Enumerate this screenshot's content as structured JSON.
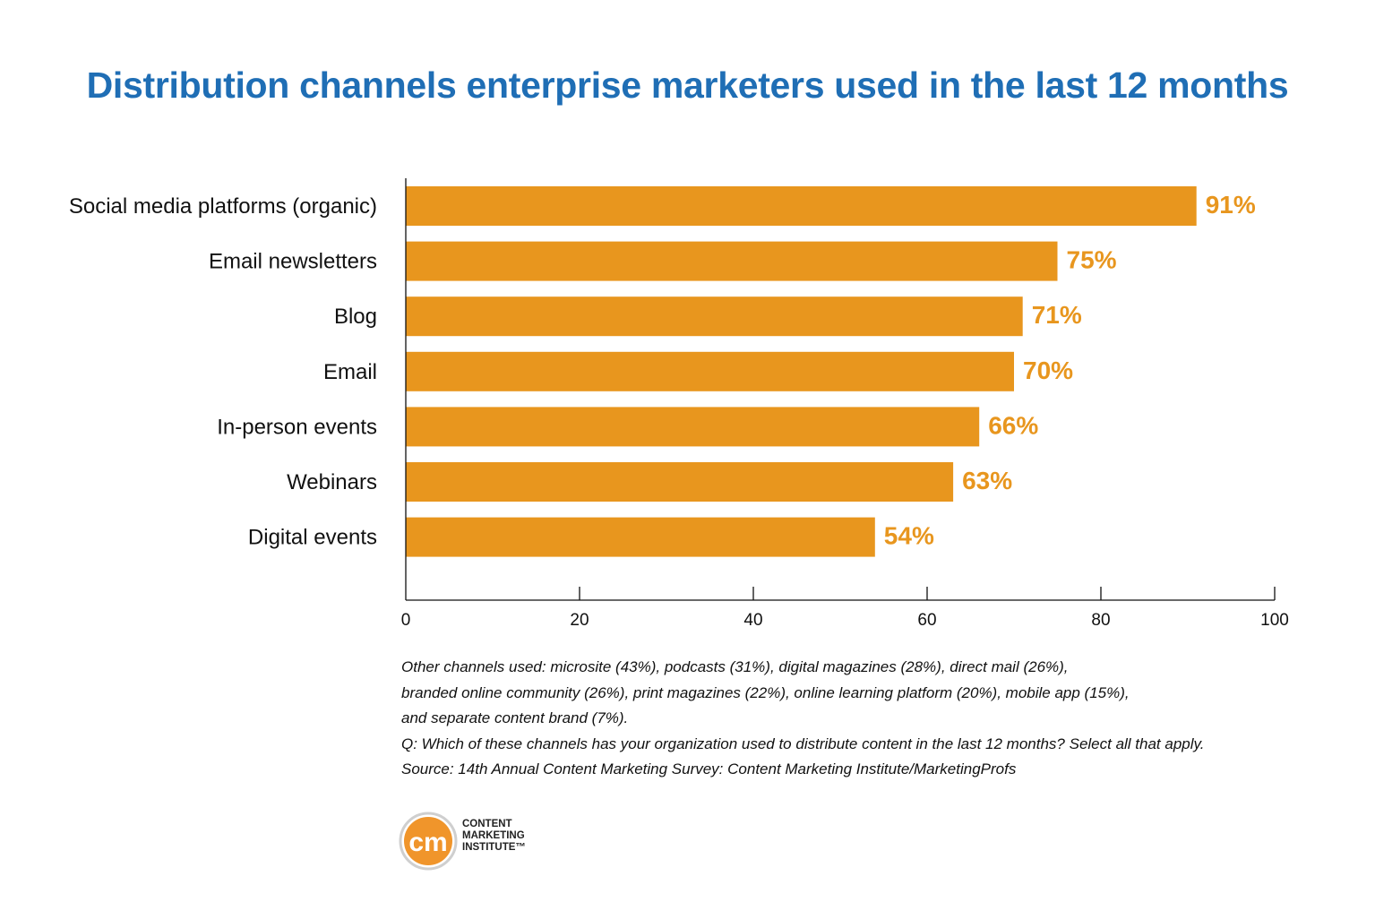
{
  "title": "Distribution channels enterprise marketers used in the last 12 months",
  "chart_data": {
    "type": "bar",
    "orientation": "horizontal",
    "title": "Distribution channels enterprise marketers used in the last 12 months",
    "categories": [
      "Social media platforms (organic)",
      "Email newsletters",
      "Blog",
      "Email",
      "In-person events",
      "Webinars",
      "Digital events"
    ],
    "values": [
      91,
      75,
      71,
      70,
      66,
      63,
      54
    ],
    "value_labels": [
      "91%",
      "75%",
      "71%",
      "70%",
      "66%",
      "63%",
      "54%"
    ],
    "xlim": [
      0,
      100
    ],
    "xticks": [
      0,
      20,
      40,
      60,
      80,
      100
    ],
    "xtick_labels": [
      "0",
      "20",
      "40",
      "60",
      "80",
      "100"
    ],
    "xlabel": "",
    "ylabel": "",
    "grid": false,
    "legend": "none",
    "bar_color": "#e8961e"
  },
  "notes": {
    "line1": "Other channels used: microsite (43%), podcasts (31%), digital magazines (28%), direct mail (26%),",
    "line2": "branded online community (26%), print magazines (22%), online learning platform (20%), mobile app (15%),",
    "line3": "and separate content brand (7%).",
    "question": "Q: Which of these channels has your organization used to distribute content in the last 12 months? Select all that apply.",
    "source": "Source: 14th Annual Content Marketing Survey: Content Marketing Institute/MarketingProfs"
  },
  "logo": {
    "mark": "cm",
    "line1": "CONTENT",
    "line2": "MARKETING",
    "line3": "INSTITUTE™",
    "color": "#f0952b"
  },
  "colors": {
    "title": "#1f6eb5",
    "bar": "#e8961e",
    "value_label": "#e8961e"
  }
}
